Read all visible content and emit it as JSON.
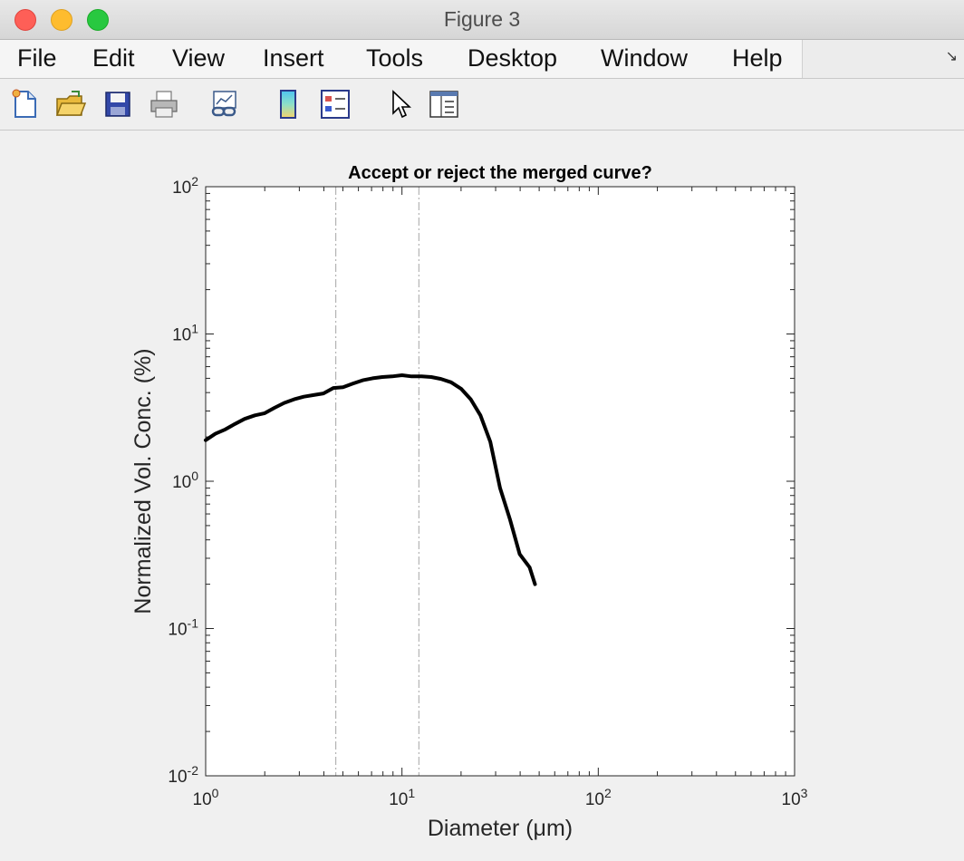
{
  "window": {
    "title": "Figure 3"
  },
  "menu": {
    "items": [
      "File",
      "Edit",
      "View",
      "Insert",
      "Tools",
      "Desktop",
      "Window",
      "Help"
    ],
    "overflow_icon": "arrow-icon"
  },
  "toolbar": {
    "icons": [
      "new-figure-icon",
      "open-file-icon",
      "save-icon",
      "print-icon",
      "link-plot-icon",
      "colorbar-icon",
      "legend-icon",
      "pointer-icon",
      "property-inspector-icon"
    ]
  },
  "chart_data": {
    "type": "line",
    "title": "Accept or reject the merged curve?",
    "xlabel": "Diameter (μm)",
    "ylabel": "Normalized Vol. Conc. (%)",
    "xscale": "log",
    "yscale": "log",
    "xlim": [
      1,
      1000
    ],
    "ylim": [
      0.01,
      100
    ],
    "x_ticks": [
      1,
      10,
      100,
      1000
    ],
    "y_ticks": [
      0.01,
      0.1,
      1,
      10,
      100
    ],
    "x_tick_labels": [
      {
        "base": "10",
        "exp": "0"
      },
      {
        "base": "10",
        "exp": "1"
      },
      {
        "base": "10",
        "exp": "2"
      },
      {
        "base": "10",
        "exp": "3"
      }
    ],
    "y_tick_labels": [
      {
        "base": "10",
        "exp": "-2"
      },
      {
        "base": "10",
        "exp": "-1"
      },
      {
        "base": "10",
        "exp": "0"
      },
      {
        "base": "10",
        "exp": "1"
      },
      {
        "base": "10",
        "exp": "2"
      }
    ],
    "grid": false,
    "color": "#000000",
    "series": [
      {
        "style": "solid",
        "x": [
          1.0,
          1.12,
          1.26,
          1.41,
          1.58,
          1.78,
          2.0,
          2.24,
          2.51,
          2.82,
          3.16,
          3.55,
          3.98,
          4.47,
          5.01,
          5.62,
          6.31,
          7.08,
          7.94,
          8.91,
          10.0,
          11.2,
          12.6,
          14.1,
          15.8,
          17.8,
          20.0,
          22.4,
          25.1,
          28.2,
          31.6,
          35.5,
          39.8,
          44.7,
          47.6
        ],
        "y": [
          1.9,
          2.1,
          2.25,
          2.45,
          2.65,
          2.8,
          2.9,
          3.15,
          3.4,
          3.6,
          3.75,
          3.85,
          3.95,
          4.3,
          4.35,
          4.6,
          4.85,
          5.0,
          5.1,
          5.15,
          5.25,
          5.15,
          5.15,
          5.1,
          4.95,
          4.7,
          4.25,
          3.6,
          2.8,
          1.85,
          0.9,
          0.55,
          0.32,
          0.26,
          0.2
        ]
      }
    ],
    "vlines": [
      {
        "x": 4.6,
        "style": "dash-dot",
        "color": "#b4b4b4"
      },
      {
        "x": 12.2,
        "style": "dash-dot",
        "color": "#b4b4b4"
      }
    ]
  }
}
